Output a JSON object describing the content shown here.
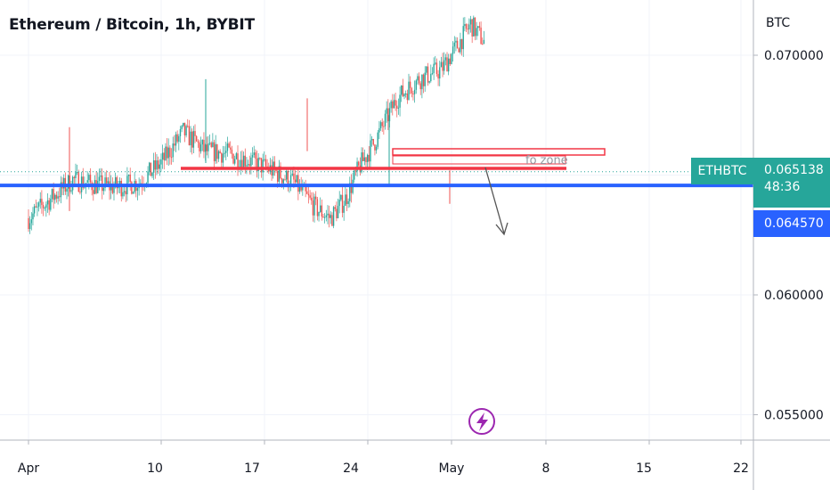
{
  "header": {
    "title": "Ethereum / Bitcoin, 1h, BYBIT"
  },
  "chart_data": {
    "type": "candlestick",
    "symbol": "ETHBTC",
    "axis_unit": "BTC",
    "y_ticks": [
      "0.070000",
      "0.060000",
      "0.055000"
    ],
    "x_ticks": [
      "Apr",
      "10",
      "17",
      "24",
      "May",
      "8",
      "15",
      "22"
    ],
    "ylim": [
      0.0536,
      0.0732
    ],
    "last_price": {
      "symbol": "ETHBTC",
      "value": "0.065138",
      "countdown": "48:36"
    },
    "support_line": {
      "value": "0.064570"
    },
    "annotations": {
      "zone_label": "fo zone"
    },
    "price_path": [
      [
        0,
        0.0632
      ],
      [
        1.5,
        0.064
      ],
      [
        3,
        0.0648
      ],
      [
        4.5,
        0.0646
      ],
      [
        6,
        0.0645
      ],
      [
        7.5,
        0.0647
      ],
      [
        9,
        0.0655
      ],
      [
        10.5,
        0.0668
      ],
      [
        12,
        0.066
      ],
      [
        13.5,
        0.0659
      ],
      [
        15,
        0.0656
      ],
      [
        16.5,
        0.0652
      ],
      [
        18,
        0.0647
      ],
      [
        19.5,
        0.0636
      ],
      [
        20.5,
        0.0632
      ],
      [
        21.5,
        0.064
      ],
      [
        22.5,
        0.0654
      ],
      [
        23.5,
        0.0664
      ],
      [
        25,
        0.0682
      ],
      [
        26.5,
        0.069
      ],
      [
        28,
        0.0694
      ],
      [
        29,
        0.0703
      ],
      [
        30,
        0.0713
      ],
      [
        31,
        0.0705
      ],
      [
        32,
        0.0694
      ],
      [
        33,
        0.0678
      ],
      [
        34,
        0.0669
      ],
      [
        35,
        0.0676
      ],
      [
        36.5,
        0.0672
      ],
      [
        38,
        0.067
      ],
      [
        39.5,
        0.0664
      ],
      [
        41,
        0.0659
      ],
      [
        42.5,
        0.065
      ],
      [
        43.5,
        0.0656
      ],
      [
        45,
        0.0648
      ],
      [
        46.5,
        0.0649
      ],
      [
        48,
        0.065
      ],
      [
        49,
        0.0648
      ],
      [
        50,
        0.0645
      ],
      [
        51,
        0.0647
      ],
      [
        52,
        0.0651
      ],
      [
        53.5,
        0.0652
      ],
      [
        55,
        0.065
      ]
    ],
    "colors": {
      "up": "#26a69a",
      "down": "#ef5350",
      "support": "#2962ff",
      "resistance": "#f23645"
    }
  }
}
